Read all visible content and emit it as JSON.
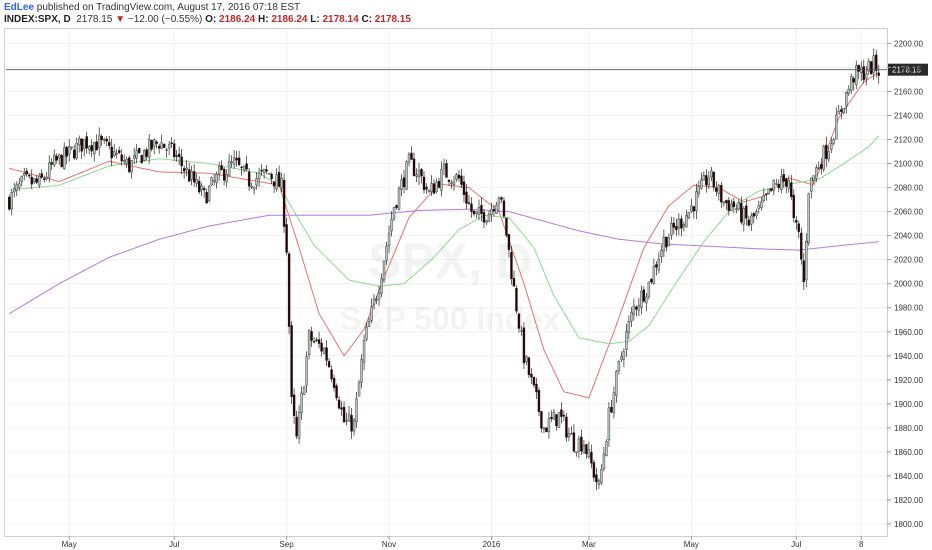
{
  "header": {
    "author": "EdLee",
    "published_text": "published on TradingView.com, August 17, 2016 07:18 EST",
    "symbol": "INDEX:SPX, D",
    "last": "2178.15",
    "change_arrow": "▼",
    "change": "−12.00 (−0.55%)",
    "o_label": "O:",
    "o_value": "2186.24",
    "h_label": "H:",
    "h_value": "2186.24",
    "l_label": "L:",
    "l_value": "2178.14",
    "c_label": "C:",
    "c_value": "2178.15"
  },
  "watermark": {
    "symbol": "SPX, D",
    "name": "S&P 500 Index"
  },
  "colors": {
    "up_body": "#b6c7c1",
    "down_body": "#2a0000",
    "wick": "#222222",
    "ma_fast": "#e57373",
    "ma_mid": "#8fd88f",
    "ma_slow": "#b57ad9",
    "grid": "#f0f0f0",
    "price_line": "#555555",
    "price_label_bg": "#2a2a2a",
    "price_label_text": "#ffffff"
  },
  "chart_data": {
    "type": "candlestick",
    "price_scale": {
      "ylim": [
        1790,
        2212
      ],
      "ticks": [
        "2200.00",
        "2180.00",
        "2160.00",
        "2140.00",
        "2120.00",
        "2100.00",
        "2080.00",
        "2060.00",
        "2040.00",
        "2020.00",
        "2000.00",
        "1980.00",
        "1960.00",
        "1940.00",
        "1920.00",
        "1900.00",
        "1880.00",
        "1860.00",
        "1840.00",
        "1820.00",
        "1800.00"
      ],
      "current_price": "2178.15"
    },
    "time_axis": {
      "labels": [
        {
          "text": "May",
          "bar": 24
        },
        {
          "text": "Jul",
          "bar": 66
        },
        {
          "text": "Sep",
          "bar": 111
        },
        {
          "text": "Nov",
          "bar": 152
        },
        {
          "text": "2016",
          "bar": 193
        },
        {
          "text": "Mar",
          "bar": 232
        },
        {
          "text": "May",
          "bar": 273
        },
        {
          "text": "Jul",
          "bar": 315
        },
        {
          "text": "8",
          "bar": 341
        }
      ]
    },
    "moving_averages": [
      {
        "role": "fast",
        "anchors": [
          [
            0,
            2096
          ],
          [
            20,
            2085
          ],
          [
            40,
            2102
          ],
          [
            60,
            2093
          ],
          [
            80,
            2092
          ],
          [
            100,
            2085
          ],
          [
            108,
            2082
          ],
          [
            116,
            2030
          ],
          [
            124,
            1975
          ],
          [
            134,
            1940
          ],
          [
            142,
            1962
          ],
          [
            150,
            2005
          ],
          [
            160,
            2055
          ],
          [
            172,
            2083
          ],
          [
            184,
            2080
          ],
          [
            196,
            2060
          ],
          [
            206,
            2000
          ],
          [
            214,
            1945
          ],
          [
            222,
            1910
          ],
          [
            232,
            1905
          ],
          [
            242,
            1960
          ],
          [
            254,
            2030
          ],
          [
            264,
            2065
          ],
          [
            274,
            2082
          ],
          [
            284,
            2080
          ],
          [
            294,
            2068
          ],
          [
            302,
            2073
          ],
          [
            312,
            2088
          ],
          [
            322,
            2082
          ],
          [
            332,
            2138
          ],
          [
            342,
            2168
          ],
          [
            348,
            2176
          ]
        ]
      },
      {
        "role": "mid",
        "anchors": [
          [
            0,
            2078
          ],
          [
            20,
            2082
          ],
          [
            40,
            2098
          ],
          [
            60,
            2104
          ],
          [
            80,
            2100
          ],
          [
            100,
            2092
          ],
          [
            108,
            2082
          ],
          [
            114,
            2060
          ],
          [
            122,
            2032
          ],
          [
            136,
            2003
          ],
          [
            148,
            1998
          ],
          [
            158,
            2000
          ],
          [
            170,
            2022
          ],
          [
            180,
            2045
          ],
          [
            190,
            2057
          ],
          [
            200,
            2055
          ],
          [
            210,
            2030
          ],
          [
            218,
            1990
          ],
          [
            228,
            1955
          ],
          [
            240,
            1950
          ],
          [
            248,
            1952
          ],
          [
            256,
            1965
          ],
          [
            266,
            1998
          ],
          [
            278,
            2035
          ],
          [
            290,
            2065
          ],
          [
            300,
            2077
          ],
          [
            312,
            2083
          ],
          [
            324,
            2087
          ],
          [
            334,
            2100
          ],
          [
            344,
            2114
          ],
          [
            348,
            2123
          ]
        ]
      },
      {
        "role": "slow",
        "anchors": [
          [
            0,
            1975
          ],
          [
            20,
            2000
          ],
          [
            40,
            2022
          ],
          [
            60,
            2037
          ],
          [
            80,
            2048
          ],
          [
            104,
            2057
          ],
          [
            124,
            2057
          ],
          [
            144,
            2057
          ],
          [
            164,
            2061
          ],
          [
            184,
            2062
          ],
          [
            200,
            2060
          ],
          [
            214,
            2052
          ],
          [
            228,
            2044
          ],
          [
            244,
            2037
          ],
          [
            262,
            2033
          ],
          [
            282,
            2031
          ],
          [
            300,
            2029
          ],
          [
            316,
            2028
          ],
          [
            334,
            2032
          ],
          [
            348,
            2035
          ]
        ]
      }
    ],
    "price_path": [
      [
        0,
        2070
      ],
      [
        6,
        2085
      ],
      [
        12,
        2083
      ],
      [
        18,
        2100
      ],
      [
        24,
        2108
      ],
      [
        30,
        2118
      ],
      [
        36,
        2117
      ],
      [
        42,
        2108
      ],
      [
        48,
        2098
      ],
      [
        54,
        2109
      ],
      [
        60,
        2118
      ],
      [
        66,
        2108
      ],
      [
        72,
        2090
      ],
      [
        78,
        2072
      ],
      [
        84,
        2090
      ],
      [
        90,
        2100
      ],
      [
        96,
        2086
      ],
      [
        104,
        2092
      ],
      [
        109,
        2080
      ],
      [
        111,
        2030
      ],
      [
        113,
        1900
      ],
      [
        115,
        1870
      ],
      [
        120,
        1955
      ],
      [
        126,
        1945
      ],
      [
        130,
        1920
      ],
      [
        134,
        1885
      ],
      [
        138,
        1883
      ],
      [
        142,
        1950
      ],
      [
        148,
        2000
      ],
      [
        154,
        2065
      ],
      [
        160,
        2100
      ],
      [
        164,
        2092
      ],
      [
        168,
        2075
      ],
      [
        174,
        2093
      ],
      [
        180,
        2087
      ],
      [
        186,
        2055
      ],
      [
        192,
        2060
      ],
      [
        196,
        2075
      ],
      [
        199,
        2042
      ],
      [
        202,
        1995
      ],
      [
        206,
        1940
      ],
      [
        210,
        1910
      ],
      [
        214,
        1880
      ],
      [
        220,
        1890
      ],
      [
        226,
        1868
      ],
      [
        230,
        1868
      ],
      [
        236,
        1830
      ],
      [
        240,
        1890
      ],
      [
        246,
        1950
      ],
      [
        250,
        1980
      ],
      [
        256,
        2000
      ],
      [
        262,
        2036
      ],
      [
        268,
        2050
      ],
      [
        272,
        2060
      ],
      [
        276,
        2075
      ],
      [
        280,
        2090
      ],
      [
        286,
        2068
      ],
      [
        290,
        2065
      ],
      [
        296,
        2050
      ],
      [
        300,
        2060
      ],
      [
        306,
        2080
      ],
      [
        312,
        2088
      ],
      [
        314,
        2050
      ],
      [
        316,
        2040
      ],
      [
        318,
        2000
      ],
      [
        320,
        2080
      ],
      [
        324,
        2100
      ],
      [
        328,
        2115
      ],
      [
        334,
        2152
      ],
      [
        338,
        2173
      ],
      [
        342,
        2176
      ],
      [
        346,
        2182
      ],
      [
        348,
        2178
      ]
    ]
  }
}
